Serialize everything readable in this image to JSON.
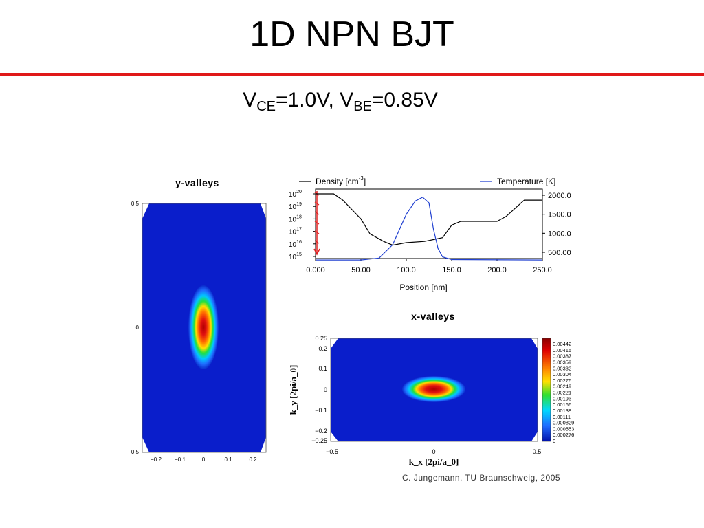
{
  "slide": {
    "title": "1D NPN BJT",
    "bias": {
      "v": "V",
      "ce_sub": "CE",
      "ce_val": "=1.0V, ",
      "be_sub": "BE",
      "be_val": "=0.85V"
    },
    "credit": "C. Jungemann, TU Braunschweig, 2005"
  },
  "chart_data": [
    {
      "type": "heatmap",
      "title": "y-valleys",
      "xlabel": "",
      "ylabel": "",
      "x_ticks": [
        "−0.2",
        "−0.1",
        "0",
        "0.1",
        "0.2"
      ],
      "y_ticks": [
        "0.5",
        "0",
        "−0.5"
      ],
      "peak": {
        "x": 0,
        "y": 0
      }
    },
    {
      "type": "line",
      "xlabel": "Position  [nm]",
      "x_ticks": [
        "0.000",
        "50.00",
        "100.0",
        "150.0",
        "200.0",
        "250.0"
      ],
      "y_left_ticks": [
        {
          "base": "10",
          "exp": "20"
        },
        {
          "base": "10",
          "exp": "19"
        },
        {
          "base": "10",
          "exp": "18"
        },
        {
          "base": "10",
          "exp": "17"
        },
        {
          "base": "10",
          "exp": "16"
        },
        {
          "base": "10",
          "exp": "15"
        }
      ],
      "y_right_ticks": [
        "2000.0",
        "1500.0",
        "1000.0",
        "500.00"
      ],
      "ylim_right": [
        300,
        2000
      ],
      "colors": {
        "density": "#000000",
        "temperature": "#1f3fd0"
      },
      "series": [
        {
          "name": "Density  [cm-3]",
          "legend_main": "Density  [cm",
          "legend_sup": "-3",
          "legend_end": "]",
          "axis": "left",
          "x": [
            0,
            20,
            30,
            50,
            60,
            75,
            85,
            100,
            120,
            140,
            150,
            160,
            180,
            200,
            210,
            230,
            250
          ],
          "log_values": [
            20,
            20,
            19.5,
            18,
            16.8,
            16.2,
            15.9,
            16.1,
            16.2,
            16.5,
            17.5,
            17.8,
            17.8,
            17.8,
            18.2,
            19.5,
            19.5
          ]
        },
        {
          "name": "Temperature  [K]",
          "axis": "right",
          "x": [
            0,
            50,
            70,
            85,
            100,
            110,
            118,
            125,
            130,
            135,
            140,
            150,
            250
          ],
          "values": [
            300,
            300,
            350,
            700,
            1500,
            1850,
            1950,
            1800,
            1100,
            600,
            380,
            310,
            300
          ]
        }
      ]
    },
    {
      "type": "heatmap",
      "title": "x-valleys",
      "xlabel": "k_x [2pi/a_0]",
      "ylabel": "k_y [2pi/a_0]",
      "x_ticks": [
        "−0.5",
        "0",
        "0.5"
      ],
      "y_ticks": [
        "0.25",
        "0.2",
        "0.1",
        "0",
        "−0.1",
        "−0.2",
        "−0.25"
      ],
      "peak": {
        "x": 0,
        "y": 0
      },
      "colorbar": [
        "0.00442",
        "0.00415",
        "0.00387",
        "0.00359",
        "0.00332",
        "0.00304",
        "0.00276",
        "0.00249",
        "0.00221",
        "0.00193",
        "0.00166",
        "0.00138",
        "0.00111",
        "0.000829",
        "0.000553",
        "0.000276",
        "0"
      ]
    }
  ]
}
